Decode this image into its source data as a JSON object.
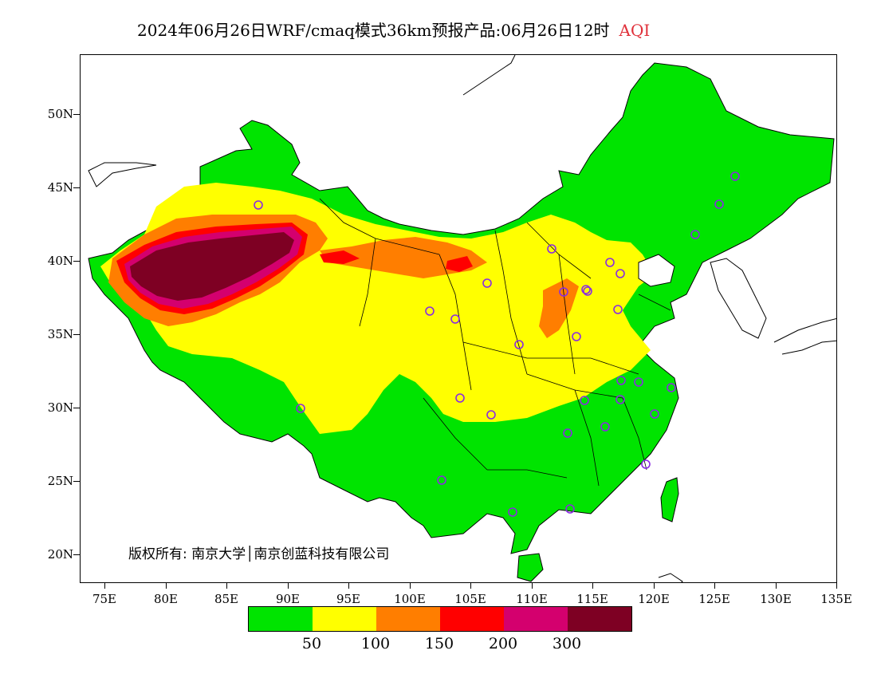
{
  "title": {
    "main": "2024年06月26日WRF/cmaq模式36km预报产品:06月26日12时",
    "variable": "AQI"
  },
  "map": {
    "lat_labels": [
      "50N",
      "45N",
      "40N",
      "35N",
      "30N",
      "25N",
      "20N"
    ],
    "lon_labels": [
      "75E",
      "80E",
      "85E",
      "90E",
      "95E",
      "100E",
      "105E",
      "110E",
      "115E",
      "120E",
      "125E",
      "130E",
      "135E"
    ],
    "copyright": "版权所有: 南京大学│南京创蓝科技有限公司",
    "station_marker_count": 31
  },
  "legend": {
    "colors": [
      "#00e400",
      "#ffff00",
      "#ff7e00",
      "#ff0000",
      "#d4006e",
      "#7e0023"
    ],
    "labels": [
      "50",
      "100",
      "150",
      "200",
      "300"
    ]
  }
}
